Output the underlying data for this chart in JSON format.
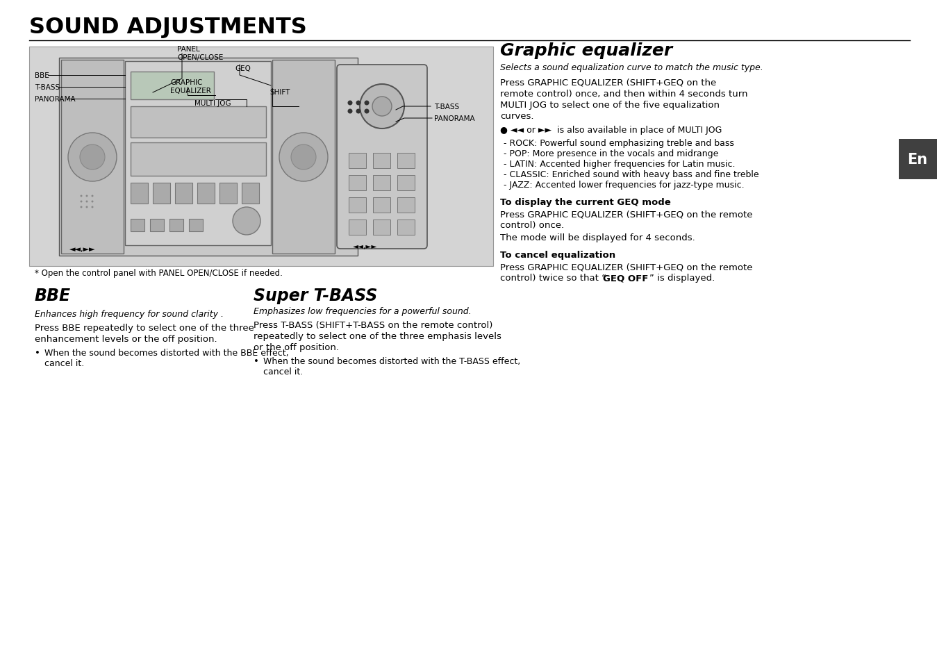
{
  "title": "SOUND ADJUSTMENTS",
  "bg_color": "#ffffff",
  "panel_bg": "#d0d0d0",
  "en_badge_color": "#404040",
  "title_color": "#000000",
  "line_color": "#000000",
  "sections": {
    "bbe_title": "BBE",
    "bbe_italic": "Enhances high frequency for sound clarity .",
    "bbe_p1_line1": "Press BBE repeatedly to select one of the three",
    "bbe_p1_line2": "enhancement levels or the off position.",
    "bbe_bullet1": "When the sound becomes distorted with the BBE effect,",
    "bbe_bullet2": "  cancel it.",
    "tbass_title": "Super T-BASS",
    "tbass_italic": "Emphasizes low frequencies for a powerful sound.",
    "tbass_p1_line1": "Press T-BASS (SHIFT+T-BASS on the remote control)",
    "tbass_p1_line2": "repeatedly to select one of the three emphasis levels",
    "tbass_p1_line3": "or the off position.",
    "tbass_bullet1": "When the sound becomes distorted with the T-BASS effect,",
    "tbass_bullet2": "  cancel it.",
    "geq_title": "Graphic equalizer",
    "geq_italic": "Selects a sound equalization curve to match the music type.",
    "geq_p1_line1": "Press GRAPHIC EQUALIZER (SHIFT+GEQ on the",
    "geq_p1_line2": "remote control) once, and then within 4 seconds turn",
    "geq_p1_line3": "MULTI JOG to select one of the five equalization",
    "geq_p1_line4": "curves.",
    "geq_bullet": "● ◄◄ or ►►  is also available in place of MULTI JOG",
    "geq_list": [
      "- ROCK: Powerful sound emphasizing treble and bass",
      "- POP: More presence in the vocals and midrange",
      "- LATIN: Accented higher frequencies for Latin music.",
      "- CLASSIC: Enriched sound with heavy bass and fine treble",
      "- JAZZ: Accented lower frequencies for jazz-type music."
    ],
    "geq_sub1_title": "To display the current GEQ mode",
    "geq_sub1_line1": "Press GRAPHIC EQUALIZER (SHIFT+GEQ on the remote",
    "geq_sub1_line2": "control) once.",
    "geq_sub1_line3": "The mode will be displayed for 4 seconds.",
    "geq_sub2_title": "To cancel equalization",
    "geq_sub2_line1": "Press GRAPHIC EQUALIZER (SHIFT+GEQ on the remote",
    "geq_sub2_line2a": "control) twice so that “",
    "geq_sub2_monospace": "GEQ OFF",
    "geq_sub2_line2b": "” is displayed.",
    "footnote": "* Open the control panel with PANEL OPEN/CLOSE if needed.",
    "diagram_labels_left": [
      "BBE",
      "T-BASS",
      "PANORAMA"
    ],
    "diagram_label_panel": "PANEL\nOPEN/CLOSE",
    "diagram_label_geq": "GEQ",
    "diagram_label_graphic": "GRAPHIC\nEQUALIZER",
    "diagram_label_shift": "SHIFT",
    "diagram_label_multijog": "MULTI JOG",
    "diagram_label_tbass_r": "T-BASS",
    "diagram_label_panorama_r": "PANORAMA",
    "diagram_arrows": "◄◄,►►",
    "en_label": "En"
  }
}
